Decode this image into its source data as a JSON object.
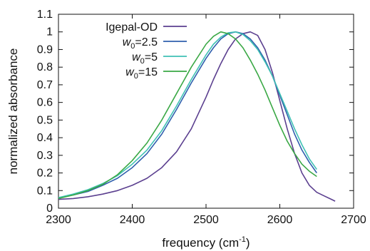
{
  "chart_data": {
    "type": "line",
    "xlabel": "frequency (cm",
    "xlabel_sup": "-1",
    "xlabel_end": ")",
    "ylabel": "normalized absorbance",
    "xlim": [
      2300,
      2700
    ],
    "ylim": [
      0,
      1.1
    ],
    "x_ticks": [
      2300,
      2400,
      2500,
      2600,
      2700
    ],
    "x_tick_labels": [
      "2300",
      "2400",
      "2500",
      "2600",
      "2700"
    ],
    "y_ticks": [
      0,
      0.1,
      0.2,
      0.3,
      0.4,
      0.5,
      0.6,
      0.7,
      0.8,
      0.9,
      1,
      1.1
    ],
    "y_tick_labels": [
      "0",
      "0.1",
      "0.2",
      "0.3",
      "0.4",
      "0.5",
      "0.6",
      "0.7",
      "0.8",
      "0.9",
      "1",
      "1.1"
    ],
    "grid": false,
    "legend_position": "top-left",
    "series": [
      {
        "name": "Igepal-OD",
        "legend_main": "Igepal-OD",
        "legend_sub": "",
        "legend_rest": "",
        "color": "#5b3f8f",
        "x": [
          2300,
          2320,
          2340,
          2360,
          2380,
          2400,
          2420,
          2440,
          2460,
          2480,
          2500,
          2510,
          2520,
          2530,
          2540,
          2550,
          2560,
          2570,
          2580,
          2590,
          2600,
          2610,
          2620,
          2630,
          2640,
          2650,
          2660,
          2670,
          2675
        ],
        "y": [
          0.05,
          0.055,
          0.065,
          0.08,
          0.1,
          0.13,
          0.17,
          0.23,
          0.32,
          0.45,
          0.63,
          0.73,
          0.82,
          0.9,
          0.96,
          0.99,
          1.0,
          0.98,
          0.9,
          0.77,
          0.61,
          0.45,
          0.31,
          0.2,
          0.13,
          0.09,
          0.07,
          0.05,
          0.04
        ]
      },
      {
        "name": "w0=2.5",
        "legend_main": "w",
        "legend_sub": "0",
        "legend_rest": "=2.5",
        "color": "#2f5fad",
        "x": [
          2300,
          2320,
          2340,
          2360,
          2380,
          2400,
          2420,
          2440,
          2460,
          2480,
          2500,
          2510,
          2520,
          2530,
          2540,
          2550,
          2560,
          2570,
          2580,
          2590,
          2600,
          2610,
          2620,
          2630,
          2640,
          2650
        ],
        "y": [
          0.06,
          0.075,
          0.095,
          0.13,
          0.17,
          0.23,
          0.31,
          0.42,
          0.56,
          0.71,
          0.85,
          0.91,
          0.96,
          0.99,
          1.0,
          0.99,
          0.96,
          0.91,
          0.84,
          0.75,
          0.64,
          0.53,
          0.42,
          0.33,
          0.26,
          0.2
        ]
      },
      {
        "name": "w0=5",
        "legend_main": "w",
        "legend_sub": "0",
        "legend_rest": "=5",
        "color": "#3fc1b4",
        "x": [
          2300,
          2320,
          2340,
          2360,
          2380,
          2400,
          2420,
          2440,
          2460,
          2480,
          2500,
          2510,
          2520,
          2530,
          2540,
          2550,
          2560,
          2570,
          2580,
          2590,
          2600,
          2610,
          2620,
          2630,
          2640,
          2650
        ],
        "y": [
          0.06,
          0.08,
          0.105,
          0.14,
          0.185,
          0.25,
          0.33,
          0.44,
          0.58,
          0.73,
          0.87,
          0.93,
          0.97,
          0.995,
          1.0,
          0.985,
          0.95,
          0.9,
          0.83,
          0.75,
          0.65,
          0.55,
          0.45,
          0.36,
          0.28,
          0.22
        ]
      },
      {
        "name": "w0=15",
        "legend_main": "w",
        "legend_sub": "0",
        "legend_rest": "=15",
        "color": "#3aa845",
        "x": [
          2300,
          2320,
          2340,
          2360,
          2380,
          2400,
          2420,
          2440,
          2460,
          2480,
          2500,
          2510,
          2520,
          2530,
          2540,
          2550,
          2560,
          2570,
          2580,
          2590,
          2600,
          2610,
          2620,
          2630,
          2640,
          2650
        ],
        "y": [
          0.055,
          0.075,
          0.1,
          0.135,
          0.19,
          0.27,
          0.37,
          0.5,
          0.65,
          0.8,
          0.93,
          0.975,
          1.0,
          0.99,
          0.96,
          0.91,
          0.84,
          0.76,
          0.67,
          0.57,
          0.47,
          0.38,
          0.31,
          0.25,
          0.21,
          0.18
        ]
      }
    ]
  }
}
